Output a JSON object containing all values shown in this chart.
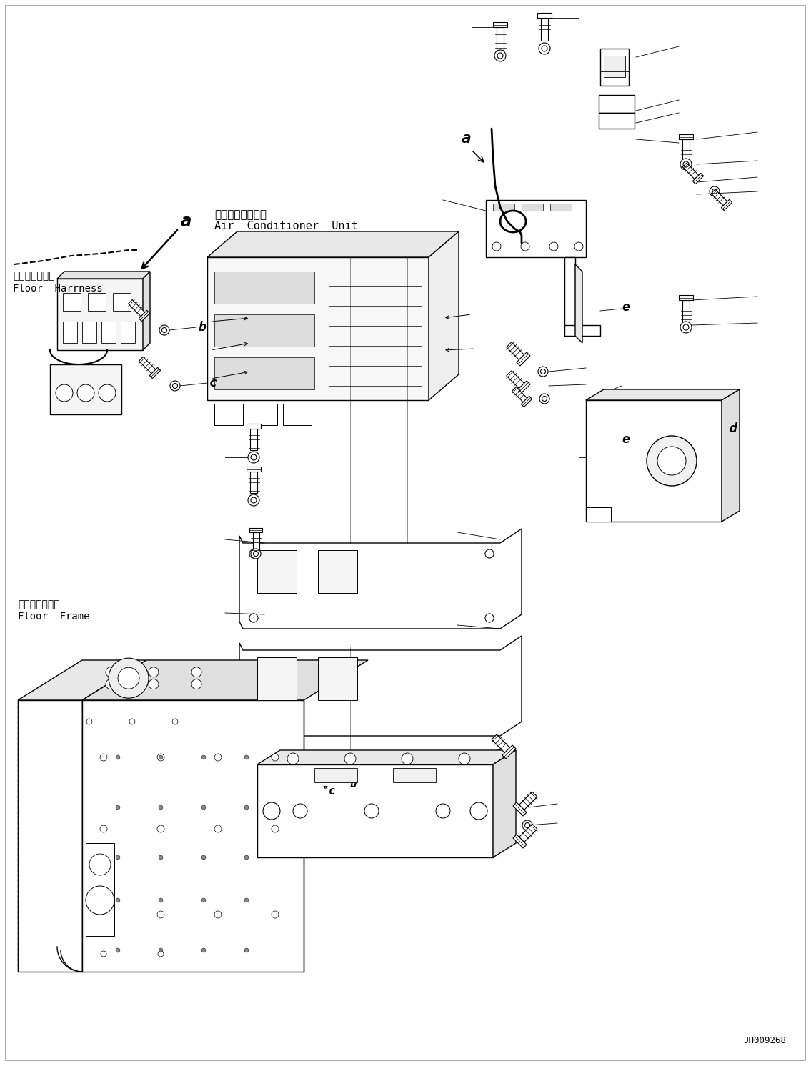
{
  "background_color": "#ffffff",
  "line_color": "#000000",
  "part_code": "JH009268",
  "labels": {
    "air_conditioner_jp": "エアコンユニット",
    "air_conditioner_en": "Air  Conditioner  Unit",
    "floor_harness_jp": "フロアハーネス",
    "floor_harness_en": "Floor  Harrness",
    "floor_frame_jp": "フロアフレーム",
    "floor_frame_en": "Floor  Frame"
  },
  "font_size_label": 10,
  "font_size_letter": 14,
  "font_size_code": 9,
  "figsize": [
    11.35,
    14.92
  ],
  "dpi": 100
}
